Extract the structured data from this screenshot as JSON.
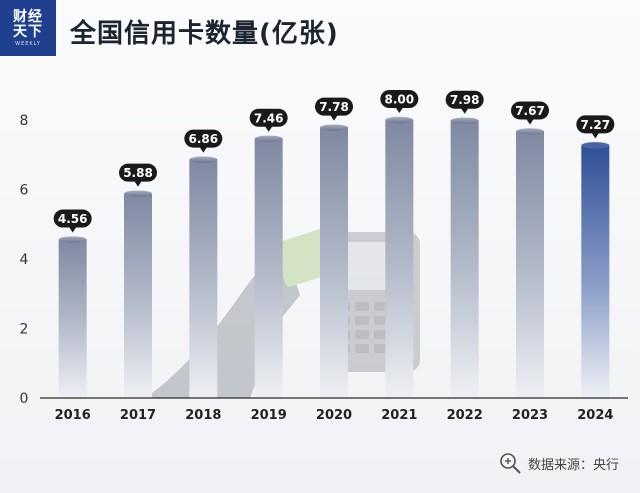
{
  "header": {
    "logo_line1": "财经",
    "logo_line2": "天下",
    "logo_line3": "WEEKLY",
    "title": "全国信用卡数量(亿张)"
  },
  "footer": {
    "source": "数据来源：央行"
  },
  "colors": {
    "brand": "#1f3f8f",
    "bar_default": "#8a93ab",
    "bar_highlight": "#2f4f97",
    "label_bg": "#1a1a1a"
  },
  "chart_data": {
    "type": "bar",
    "categories": [
      "2016",
      "2017",
      "2018",
      "2019",
      "2020",
      "2021",
      "2022",
      "2023",
      "2024"
    ],
    "values": [
      4.56,
      5.88,
      6.86,
      7.46,
      7.78,
      8.0,
      7.98,
      7.67,
      7.27
    ],
    "value_labels": [
      "4.56",
      "5.88",
      "6.86",
      "7.46",
      "7.78",
      "8.00",
      "7.98",
      "7.67",
      "7.27"
    ],
    "title": "全国信用卡数量(亿张)",
    "xlabel": "",
    "ylabel": "",
    "ylim": [
      0,
      8
    ],
    "yticks": [
      "0",
      "2",
      "4",
      "6",
      "8"
    ],
    "grid": false,
    "highlight_index": 8
  }
}
